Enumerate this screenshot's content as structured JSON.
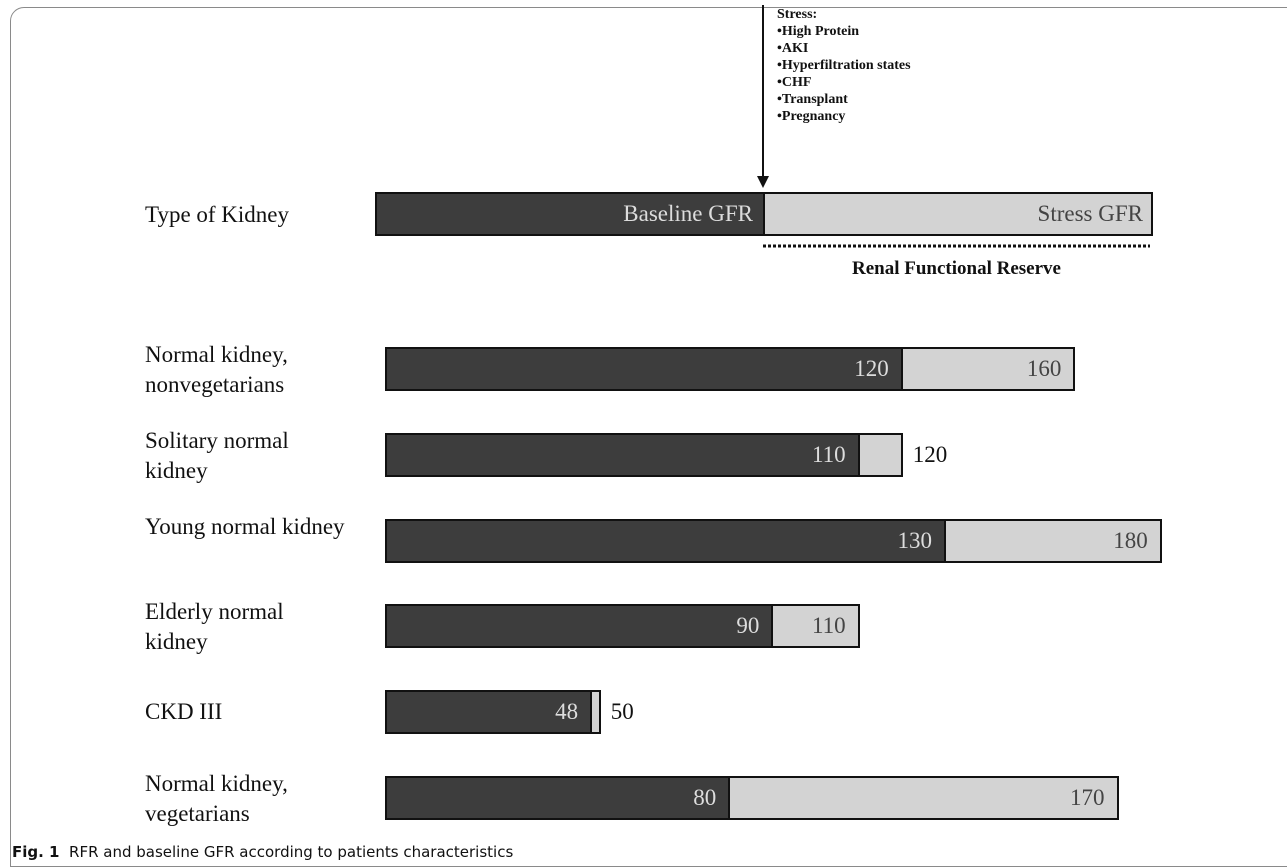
{
  "chart_data": {
    "type": "bar",
    "category_header": "Type of Kidney",
    "reserve_label": "Renal Functional Reserve",
    "stress_note": {
      "title": "Stress:",
      "items": [
        "•High Protein",
        "•AKI",
        "•Hyperfiltration states",
        "•CHF",
        "•Transplant",
        "•Pregnancy"
      ]
    },
    "categories": [
      "Normal kidney, nonvegetarians",
      "Solitary normal kidney",
      "Young normal kidney",
      "Elderly normal kidney",
      "CKD III",
      "Normal kidney, vegetarians"
    ],
    "series": [
      {
        "name": "Baseline GFR",
        "color": "#3d3d3d",
        "values": [
          120,
          110,
          130,
          90,
          48,
          80
        ]
      },
      {
        "name": "Stress GFR",
        "color": "#d3d3d3",
        "values": [
          160,
          120,
          180,
          110,
          50,
          170
        ]
      }
    ]
  },
  "caption": {
    "label": "Fig. 1",
    "text": "RFR and baseline GFR according to patients characteristics"
  }
}
